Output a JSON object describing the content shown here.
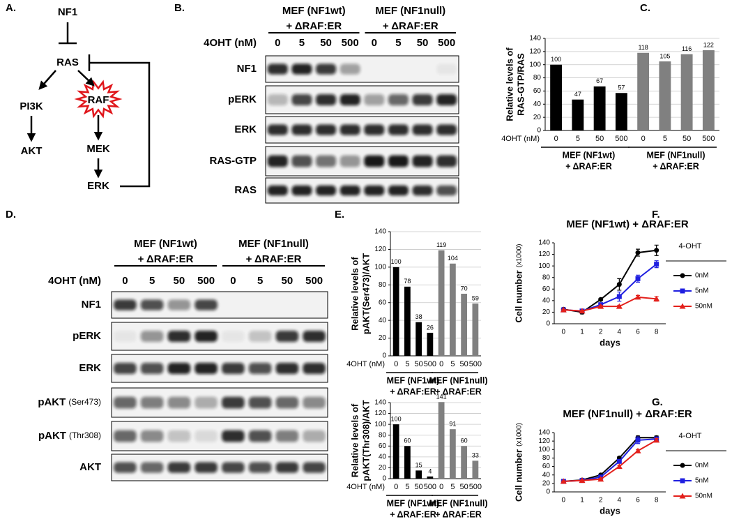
{
  "panels": {
    "a": "A.",
    "b": "B.",
    "c": "C.",
    "d": "D.",
    "e": "E.",
    "f": "F.",
    "g": "G."
  },
  "diagram": {
    "nodes": {
      "nf1": "NF1",
      "ras": "RAS",
      "pi3k": "PI3K",
      "raf": "RAF",
      "akt": "AKT",
      "mek": "MEK",
      "erk": "ERK"
    }
  },
  "blots": [
    {
      "groups": [
        [
          "MEF (NF1wt)",
          "+ ΔRAF:ER"
        ],
        [
          "MEF (NF1null)",
          "+ ΔRAF:ER"
        ]
      ],
      "dose_label": "4OHT (nM)",
      "lanes": [
        0,
        5,
        50,
        500,
        0,
        5,
        50,
        500
      ],
      "rows": [
        {
          "name": "NF1"
        },
        {
          "name": "pERK"
        },
        {
          "name": "ERK"
        },
        {
          "name": "RAS-GTP"
        },
        {
          "name": "RAS"
        }
      ]
    },
    {
      "groups": [
        [
          "MEF (NF1wt)",
          "+ ΔRAF:ER"
        ],
        [
          "MEF (NF1null)",
          "+ ΔRAF:ER"
        ]
      ],
      "dose_label": "4OHT (nM)",
      "lanes": [
        0,
        5,
        50,
        500,
        0,
        5,
        50,
        500
      ],
      "rows": [
        {
          "name": "NF1"
        },
        {
          "name": "pERK"
        },
        {
          "name": "ERK"
        },
        {
          "name": "pAKT",
          "suffix": "(Ser473)"
        },
        {
          "name": "pAKT",
          "suffix": "(Thr308)"
        },
        {
          "name": "AKT"
        }
      ]
    }
  ],
  "chart_data": [
    {
      "type": "bar",
      "ylabel": [
        "Relative levels of",
        "RAS-GTP/RAS"
      ],
      "xlabel": "4OHT (nM)",
      "categories": [
        0,
        5,
        50,
        500,
        0,
        5,
        50,
        500
      ],
      "values": [
        100,
        47,
        67,
        57,
        118,
        105,
        116,
        122
      ],
      "colors": [
        "#000000",
        "#000000",
        "#000000",
        "#000000",
        "#808080",
        "#808080",
        "#808080",
        "#808080"
      ],
      "groups": [
        [
          "MEF (NF1wt)",
          "+ ΔRAF:ER"
        ],
        [
          "MEF (NF1null)",
          "+ ΔRAF:ER"
        ]
      ],
      "ylim": [
        0,
        140
      ],
      "yticks": [
        0,
        20,
        40,
        60,
        80,
        100,
        120,
        140
      ],
      "grid": true
    },
    {
      "type": "bar",
      "ylabel": [
        "Relative levels of",
        "pAKT(Ser473)/AKT"
      ],
      "xlabel": "4OHT (nM)",
      "categories": [
        0,
        5,
        50,
        500,
        0,
        5,
        50,
        500
      ],
      "values": [
        100,
        78,
        38,
        26,
        119,
        104,
        70,
        59
      ],
      "colors": [
        "#000000",
        "#000000",
        "#000000",
        "#000000",
        "#808080",
        "#808080",
        "#808080",
        "#808080"
      ],
      "groups": [
        [
          "MEF (NF1wt)",
          "+ ΔRAF:ER"
        ],
        [
          "MEF (NF1null)",
          "+ ΔRAF:ER"
        ]
      ],
      "ylim": [
        0,
        140
      ],
      "yticks": [
        0,
        20,
        40,
        60,
        80,
        100,
        120,
        140
      ],
      "grid": true
    },
    {
      "type": "bar",
      "ylabel": [
        "Relative levels of",
        "pAKT(Thr308)/AKT"
      ],
      "xlabel": "4OHT (nM)",
      "categories": [
        0,
        5,
        50,
        500,
        0,
        5,
        50,
        500
      ],
      "values": [
        100,
        60,
        15,
        4,
        141,
        91,
        60,
        33
      ],
      "colors": [
        "#000000",
        "#000000",
        "#000000",
        "#000000",
        "#808080",
        "#808080",
        "#808080",
        "#808080"
      ],
      "groups": [
        [
          "MEF (NF1wt)",
          "+ ΔRAF:ER"
        ],
        [
          "MEF (NF1null)",
          "+ ΔRAF:ER"
        ]
      ],
      "ylim": [
        0,
        140
      ],
      "yticks": [
        0,
        20,
        40,
        60,
        80,
        100,
        120,
        140
      ],
      "grid": true
    },
    {
      "type": "line",
      "title": "MEF (NF1wt) + ΔRAF:ER",
      "xlabel": "days",
      "ylabel": "Cell number",
      "ylabel_unit": "(x1000)",
      "legend_title": "4-OHT",
      "categories": [
        0,
        1,
        2,
        4,
        6,
        8
      ],
      "series": [
        {
          "name": "0nM",
          "color": "#000000",
          "marker": "circle",
          "values": [
            25,
            20,
            42,
            68,
            123,
            127
          ],
          "errors": [
            2,
            3,
            2,
            10,
            6,
            9
          ]
        },
        {
          "name": "5nM",
          "color": "#1f1fe0",
          "marker": "square",
          "values": [
            24,
            22,
            33,
            47,
            78,
            103
          ],
          "errors": [
            2,
            2,
            3,
            8,
            6,
            6
          ]
        },
        {
          "name": "50nM",
          "color": "#e3201b",
          "marker": "triangle",
          "values": [
            24,
            22,
            30,
            30,
            46,
            43
          ],
          "errors": [
            1,
            1,
            2,
            2,
            3,
            4
          ]
        }
      ],
      "ylim": [
        0,
        140
      ],
      "yticks": [
        0,
        20,
        40,
        60,
        80,
        100,
        120,
        140
      ]
    },
    {
      "type": "line",
      "title": "MEF (NF1null) + ΔRAF:ER",
      "xlabel": "days",
      "ylabel": "Cell number",
      "ylabel_unit": "(x1000)",
      "legend_title": "4-OHT",
      "categories": [
        0,
        1,
        2,
        4,
        6,
        8
      ],
      "series": [
        {
          "name": "0nM",
          "color": "#000000",
          "marker": "circle",
          "values": [
            25,
            28,
            40,
            80,
            128,
            128
          ],
          "errors": [
            1,
            1,
            2,
            3,
            4,
            4
          ]
        },
        {
          "name": "5nM",
          "color": "#1f1fe0",
          "marker": "square",
          "values": [
            25,
            27,
            35,
            72,
            122,
            125
          ],
          "errors": [
            1,
            1,
            2,
            4,
            8,
            4
          ]
        },
        {
          "name": "50nM",
          "color": "#e3201b",
          "marker": "triangle",
          "values": [
            25,
            27,
            30,
            60,
            97,
            122
          ],
          "errors": [
            1,
            1,
            2,
            3,
            3,
            4
          ]
        }
      ],
      "ylim": [
        0,
        140
      ],
      "yticks": [
        0,
        20,
        40,
        60,
        80,
        100,
        120,
        140
      ]
    }
  ]
}
